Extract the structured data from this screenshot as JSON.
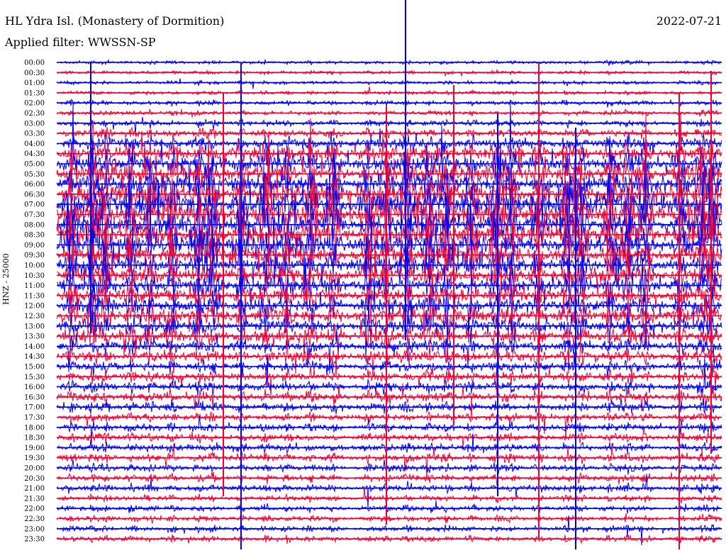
{
  "header": {
    "station": "HL Ydra Isl. (Monastery of Dormition)",
    "date": "2022-07-21",
    "filter": "Applied filter: WWSSN-SP"
  },
  "channel_label": "HNZ - 25000",
  "colors": {
    "trace_a": "#0000ee",
    "trace_b": "#ee0033",
    "background": "#ffffff"
  },
  "chart_data": {
    "type": "line",
    "subtype": "helicorder",
    "row_labels": [
      "00:00",
      "00:30",
      "01:00",
      "01:30",
      "02:00",
      "02:30",
      "03:00",
      "03:30",
      "04:00",
      "04:30",
      "05:00",
      "05:30",
      "06:00",
      "06:30",
      "07:00",
      "07:30",
      "08:00",
      "08:30",
      "09:00",
      "09:30",
      "10:00",
      "10:30",
      "11:00",
      "11:30",
      "12:00",
      "12:30",
      "13:00",
      "13:30",
      "14:00",
      "14:30",
      "15:00",
      "15:30",
      "16:00",
      "16:30",
      "17:00",
      "17:30",
      "18:00",
      "18:30",
      "19:00",
      "19:30",
      "20:00",
      "20:30",
      "21:00",
      "21:30",
      "22:00",
      "22:30",
      "23:00",
      "23:30"
    ],
    "series": [
      {
        "color": "blue"
      },
      {
        "color": "red"
      }
    ],
    "activity_envelope": [
      1,
      1,
      1,
      1,
      1.5,
      1.5,
      2,
      3,
      5,
      7,
      9,
      10,
      11,
      12,
      13,
      13,
      13,
      12,
      11,
      10,
      9,
      9,
      9,
      8,
      8,
      8,
      7,
      7,
      5,
      5,
      4,
      4,
      4,
      4,
      3.5,
      3,
      3,
      3,
      3,
      3,
      2.5,
      2.5,
      2.5,
      2,
      2,
      2,
      2,
      2
    ],
    "grid": false
  }
}
